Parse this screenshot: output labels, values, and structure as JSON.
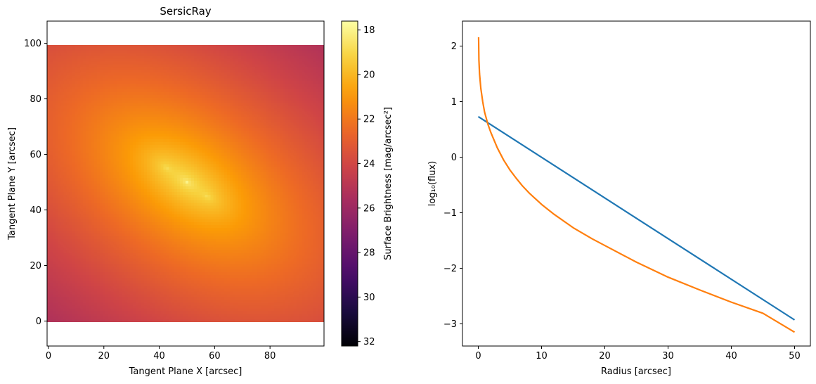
{
  "chart_data": [
    {
      "type": "heatmap",
      "title": "SersicRay",
      "xlabel": "Tangent Plane X [arcsec]",
      "ylabel": "Tangent Plane Y [arcsec]",
      "xlim": [
        -0.5,
        99.5
      ],
      "ylim": [
        -9,
        108
      ],
      "image_extent": {
        "x": [
          -0.5,
          99.5
        ],
        "y": [
          -0.5,
          99.5
        ]
      },
      "x_ticks": [
        0,
        20,
        40,
        60,
        80
      ],
      "y_ticks": [
        0,
        20,
        40,
        60,
        80,
        100
      ],
      "x_tick_labels": [
        "0",
        "20",
        "40",
        "60",
        "80"
      ],
      "y_tick_labels": [
        "0",
        "20",
        "40",
        "60",
        "80",
        "100"
      ],
      "colormap": "inferno",
      "colormap_reversed": true,
      "colormap_stops": [
        "#000004",
        "#1b0c41",
        "#4a0c6b",
        "#781c6d",
        "#a52c60",
        "#cf4446",
        "#ed6925",
        "#fb9b06",
        "#f7d13d",
        "#fcffa4"
      ],
      "source": {
        "center": [
          50,
          50
        ],
        "peak_brightness": 17.8,
        "faint_limit": 32.0,
        "position_angle_deg": -35,
        "axis_ratio": 0.6,
        "secondary_lobes_offset": 9
      },
      "colorbar": {
        "label": "Surface Brightness [mag/arcsec²]",
        "range": [
          32.2,
          17.6
        ],
        "ticks": [
          18,
          20,
          22,
          24,
          26,
          28,
          30,
          32
        ],
        "tick_labels": [
          "18",
          "20",
          "22",
          "24",
          "26",
          "28",
          "30",
          "32"
        ]
      },
      "grid": false
    },
    {
      "type": "line",
      "title": "",
      "xlabel": "Radius [arcsec]",
      "ylabel": "log₁₀(flux)",
      "xlim": [
        -2.5,
        52.5
      ],
      "ylim": [
        -3.4,
        2.45
      ],
      "x_ticks": [
        0,
        10,
        20,
        30,
        40,
        50
      ],
      "x_tick_labels": [
        "0",
        "10",
        "20",
        "30",
        "40",
        "50"
      ],
      "y_ticks": [
        -3,
        -2,
        -1,
        0,
        1,
        2
      ],
      "y_tick_labels": [
        "−3",
        "−2",
        "−1",
        "0",
        "1",
        "2"
      ],
      "grid": false,
      "series": [
        {
          "color": "#1f77b4",
          "x": [
            0,
            50
          ],
          "y": [
            0.73,
            -2.93
          ]
        },
        {
          "color": "#ff7f0e",
          "x": [
            0.05,
            0.1,
            0.2,
            0.4,
            0.7,
            1,
            1.5,
            2,
            3,
            4,
            5,
            6,
            7,
            8,
            10,
            12,
            15,
            18,
            20,
            25,
            30,
            35,
            40,
            45,
            50
          ],
          "y": [
            2.16,
            1.75,
            1.5,
            1.24,
            1.0,
            0.81,
            0.6,
            0.44,
            0.17,
            -0.05,
            -0.23,
            -0.38,
            -0.52,
            -0.64,
            -0.85,
            -1.03,
            -1.27,
            -1.47,
            -1.59,
            -1.89,
            -2.16,
            -2.39,
            -2.61,
            -2.81,
            -3.15
          ]
        }
      ]
    }
  ]
}
